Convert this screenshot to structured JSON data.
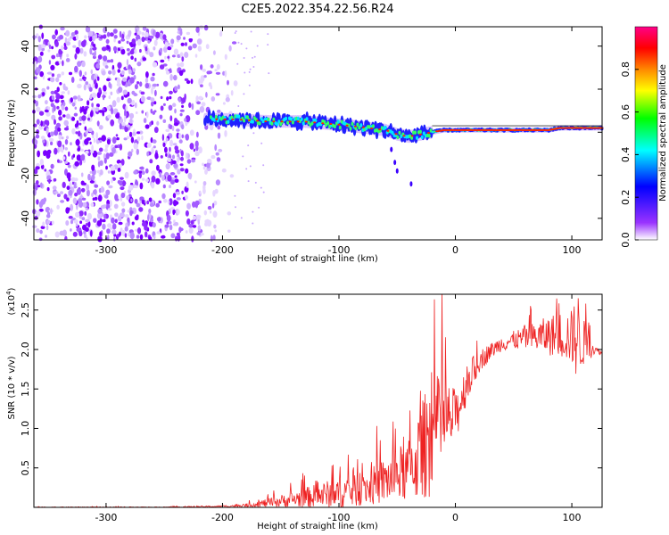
{
  "figure": {
    "title": "C2E5.2022.354.22.56.R24"
  },
  "chart_data": [
    {
      "type": "heatmap",
      "xlabel": "Height of straight line (km)",
      "ylabel": "Frequency (Hz)",
      "xlim": [
        -362,
        126
      ],
      "ylim": [
        -50,
        49
      ],
      "x_ticks": [
        "-300",
        "-200",
        "-100",
        "0",
        "100"
      ],
      "x_tick_values": [
        -300,
        -200,
        -100,
        0,
        100
      ],
      "y_ticks": [
        "-40",
        "-20",
        "0",
        "20",
        "40"
      ],
      "y_tick_values": [
        -40,
        -20,
        0,
        20,
        40
      ],
      "colorbar": {
        "label": "Normalized spectral amplitude",
        "range": [
          0,
          1
        ],
        "ticks": [
          "0.0",
          "0.2",
          "0.4",
          "0.6",
          "0.8"
        ],
        "tick_values": [
          0.0,
          0.2,
          0.4,
          0.6,
          0.8
        ],
        "colors": [
          "#ffffff",
          "#8800ff",
          "#0000ff",
          "#00ffff",
          "#00ff00",
          "#ffff00",
          "#ff8800",
          "#ff0000",
          "#ff00aa"
        ]
      },
      "features": {
        "noise_region_x": [
          -362,
          -188
        ],
        "signal_track": {
          "x": [
            -215,
            -190,
            -160,
            -130,
            -110,
            -90,
            -75,
            -60,
            -50,
            -40,
            -30,
            -20,
            -10,
            0,
            20,
            50,
            80,
            90,
            110,
            126
          ],
          "freq": [
            6,
            6,
            5,
            5,
            4,
            3,
            2,
            1,
            -1,
            -2,
            -1,
            0,
            1,
            1,
            1,
            1,
            1,
            2,
            2,
            2
          ]
        }
      },
      "grid": false
    },
    {
      "type": "line",
      "xlabel": "Height of straight line (km)",
      "ylabel": "SNR (10 * v/v)",
      "y_exponent_label": "(x10",
      "y_exponent_power": "4",
      "xlim": [
        -362,
        126
      ],
      "ylim": [
        0,
        2.7
      ],
      "x_ticks": [
        "-300",
        "-200",
        "-100",
        "0",
        "100"
      ],
      "x_tick_values": [
        -300,
        -200,
        -100,
        0,
        100
      ],
      "y_ticks": [
        "0.5",
        "1.0",
        "1.5",
        "2.0",
        "2.5"
      ],
      "y_tick_values": [
        0.5,
        1.0,
        1.5,
        2.0,
        2.5
      ],
      "series": [
        {
          "color": "#ee2222",
          "envelope": {
            "x": [
              -362,
              -300,
              -250,
              -200,
              -180,
              -160,
              -140,
              -120,
              -100,
              -80,
              -60,
              -40,
              -30,
              -20,
              -10,
              0,
              10,
              20,
              30,
              40,
              50,
              60,
              70,
              80,
              90,
              100,
              105,
              110,
              120,
              126
            ],
            "base": [
              0.0,
              0.0,
              0.0,
              0.01,
              0.02,
              0.04,
              0.07,
              0.1,
              0.12,
              0.16,
              0.25,
              0.35,
              0.5,
              0.7,
              0.9,
              1.05,
              1.5,
              1.8,
              1.95,
              2.05,
              2.08,
              2.1,
              2.1,
              2.1,
              2.1,
              2.05,
              2.0,
              2.0,
              1.98,
              1.95
            ],
            "amp": [
              0.005,
              0.005,
              0.005,
              0.01,
              0.02,
              0.06,
              0.1,
              0.15,
              0.2,
              0.2,
              0.3,
              0.4,
              0.6,
              0.8,
              0.55,
              0.35,
              0.25,
              0.15,
              0.1,
              0.1,
              0.12,
              0.15,
              0.2,
              0.25,
              0.3,
              0.35,
              0.6,
              0.3,
              0.05,
              0.03
            ]
          }
        }
      ],
      "grid": false
    }
  ]
}
